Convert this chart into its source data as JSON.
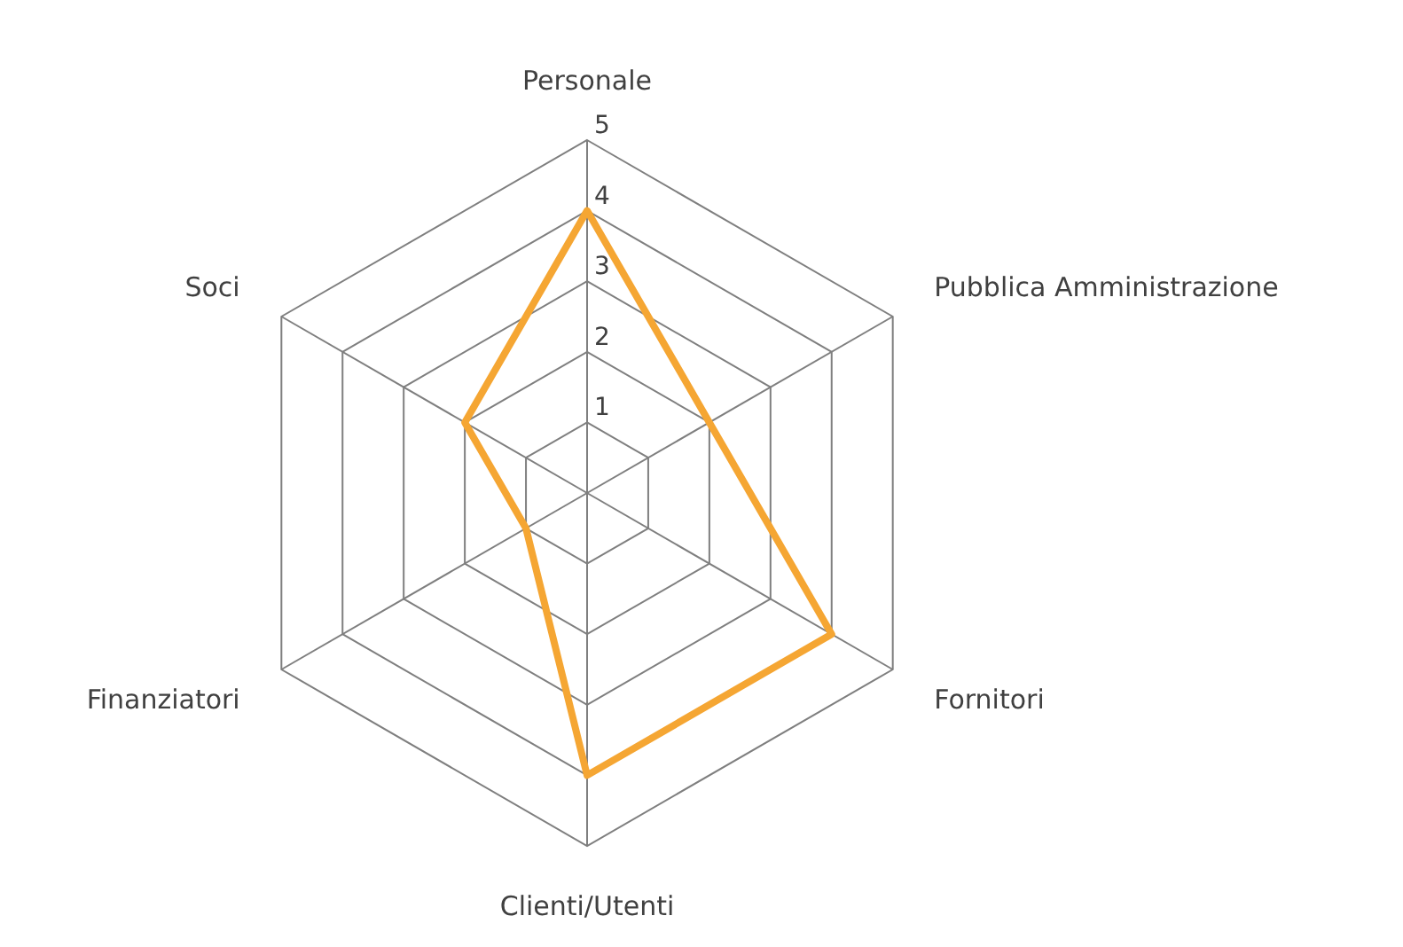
{
  "chart_data": {
    "type": "radar",
    "categories": [
      "Personale",
      "Pubblica Amministrazione",
      "Fornitori",
      "Clienti/Utenti",
      "Finanziatori",
      "Soci"
    ],
    "series": [
      {
        "color": "#f5a633",
        "values": [
          4,
          2,
          4,
          4,
          1,
          2
        ]
      }
    ],
    "ylim": [
      0,
      5
    ],
    "yticks": [
      1,
      2,
      3,
      4,
      5
    ],
    "grid": true
  }
}
